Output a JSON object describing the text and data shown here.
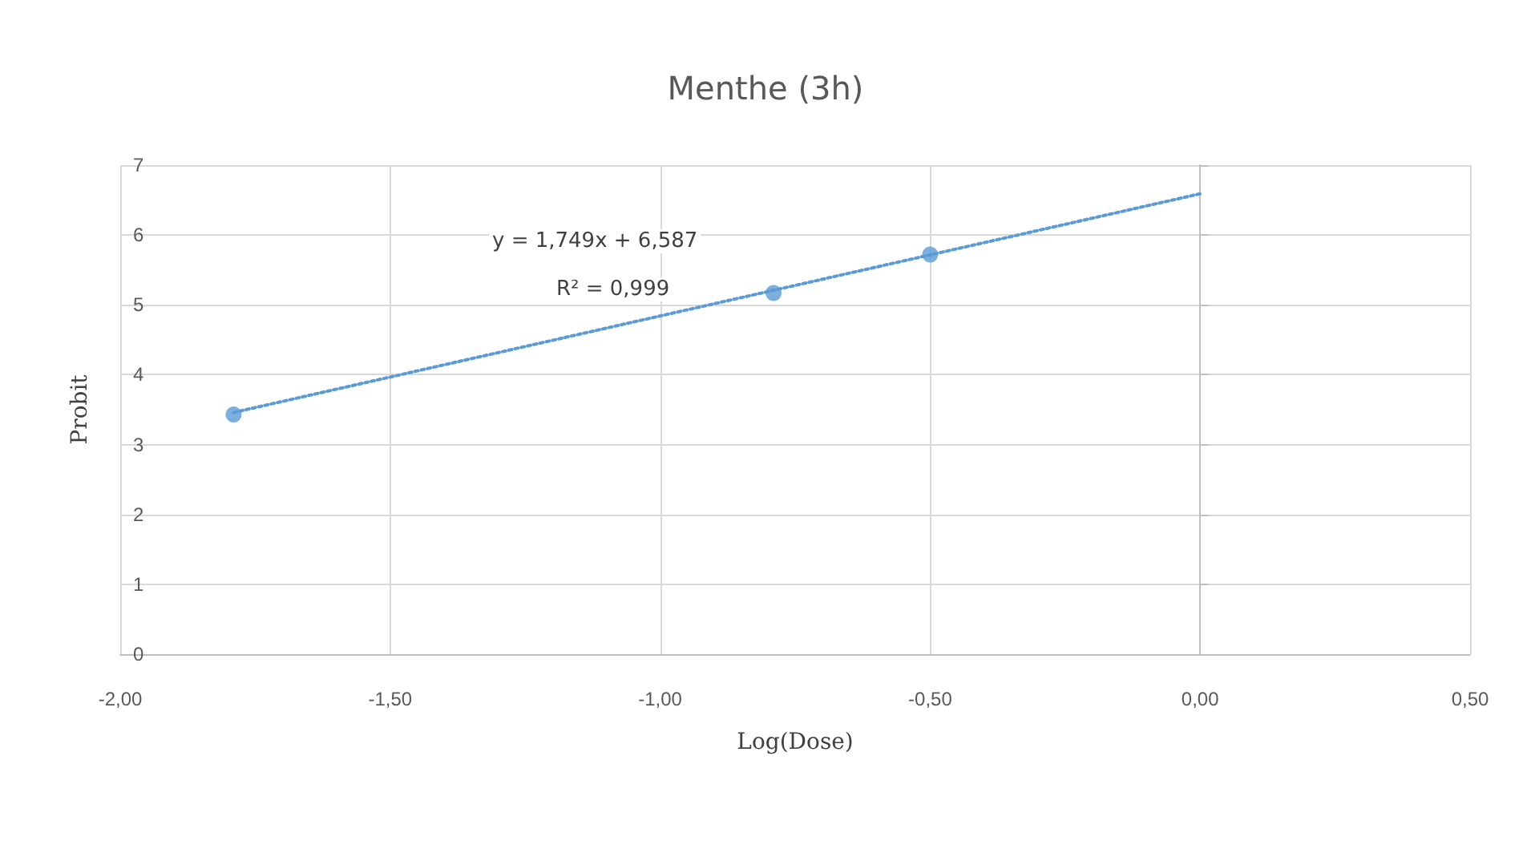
{
  "chart_data": {
    "type": "scatter",
    "title": "Menthe (3h)",
    "xlabel": "Log(Dose)",
    "ylabel": "Probit",
    "annotations": [
      "y = 1,749x + 6,587",
      "R² = 0,999"
    ],
    "series": [
      {
        "type": "scatter",
        "color": "#5b9bd5",
        "x": [
          -1.79,
          -0.79,
          -0.5
        ],
        "values": [
          3.43,
          5.17,
          5.72
        ],
        "marker": "circle"
      },
      {
        "type": "line",
        "color": "#5b9bd5",
        "x": [
          -1.79,
          0
        ],
        "values": [
          3.46,
          6.59
        ],
        "marker": "none",
        "line_style": "dotted"
      }
    ],
    "xlim": [
      -2,
      0.5
    ],
    "xticks": [
      {
        "value": -2,
        "label": "-2,00"
      },
      {
        "value": -1.5,
        "label": "-1,50"
      },
      {
        "value": -1,
        "label": "-1,00"
      },
      {
        "value": -0.5,
        "label": "-0,50"
      },
      {
        "value": 0,
        "label": "0,00"
      },
      {
        "value": 0.5,
        "label": "0,50"
      }
    ],
    "ylim": [
      0,
      7
    ],
    "yticks": [
      0,
      1,
      2,
      3,
      4,
      5,
      6,
      7
    ],
    "grid": true
  }
}
